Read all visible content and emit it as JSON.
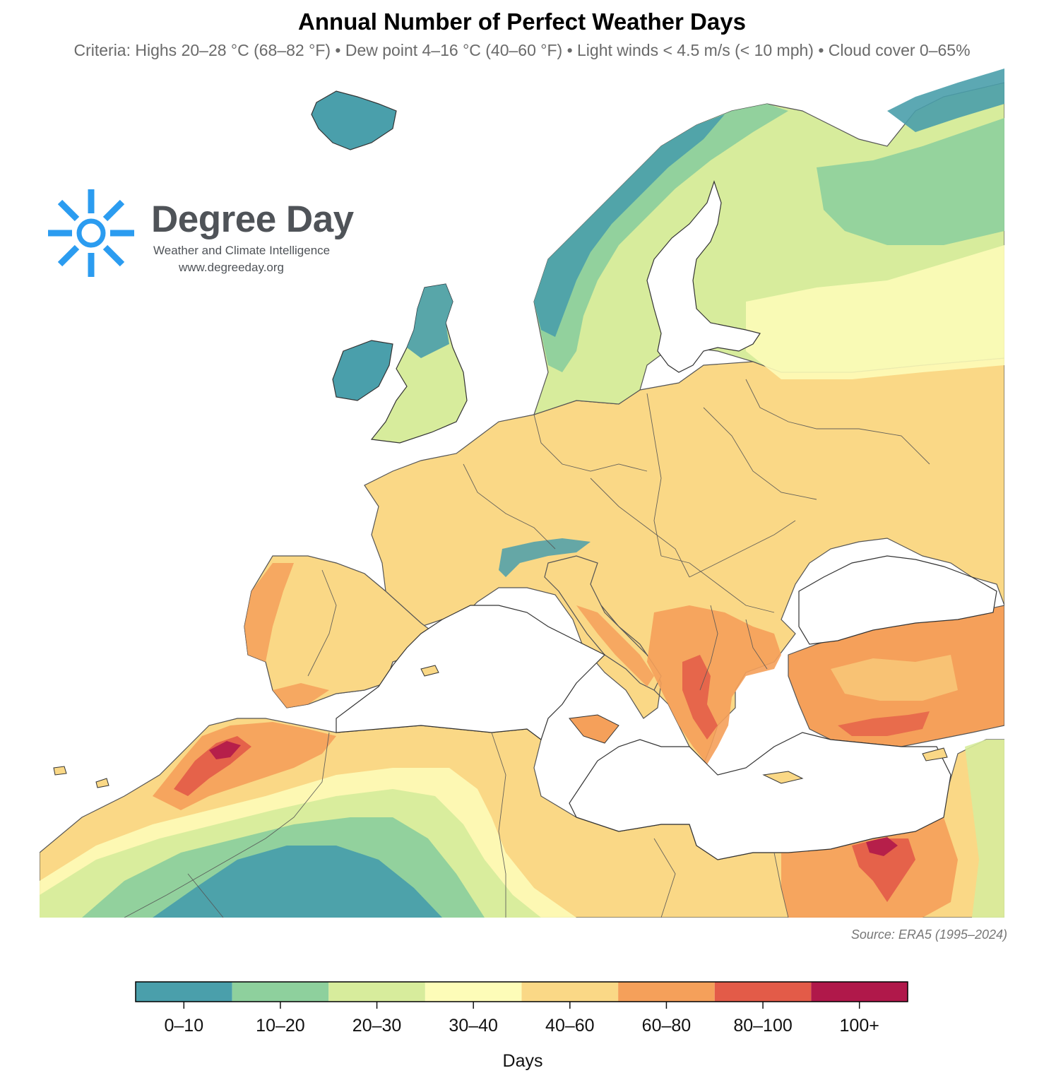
{
  "title": "Annual Number of Perfect Weather Days",
  "subtitle": "Criteria: Highs 20–28 °C (68–82 °F) • Dew point 4–16 °C (40–60 °F) • Light winds < 4.5 m/s (< 10 mph) • Cloud cover 0–65%",
  "logo": {
    "name": "Degree Day",
    "tagline": "Weather and Climate Intelligence",
    "url": "www.degreeday.org",
    "color": "#2b9cf0"
  },
  "source": "Source: ERA5 (1995–2024)",
  "legend": {
    "title": "Days",
    "classes": [
      {
        "label": "0–10",
        "color": "#4a9fab"
      },
      {
        "label": "10–20",
        "color": "#8ed09d"
      },
      {
        "label": "20–30",
        "color": "#d7ec9c"
      },
      {
        "label": "30–40",
        "color": "#fdfcb8"
      },
      {
        "label": "40–60",
        "color": "#fad886"
      },
      {
        "label": "60–80",
        "color": "#f5a05a"
      },
      {
        "label": "80–100",
        "color": "#e35b48"
      },
      {
        "label": "100+",
        "color": "#b0184a"
      }
    ]
  },
  "colors": {
    "sea": "#ffffff",
    "border": "#555555"
  }
}
